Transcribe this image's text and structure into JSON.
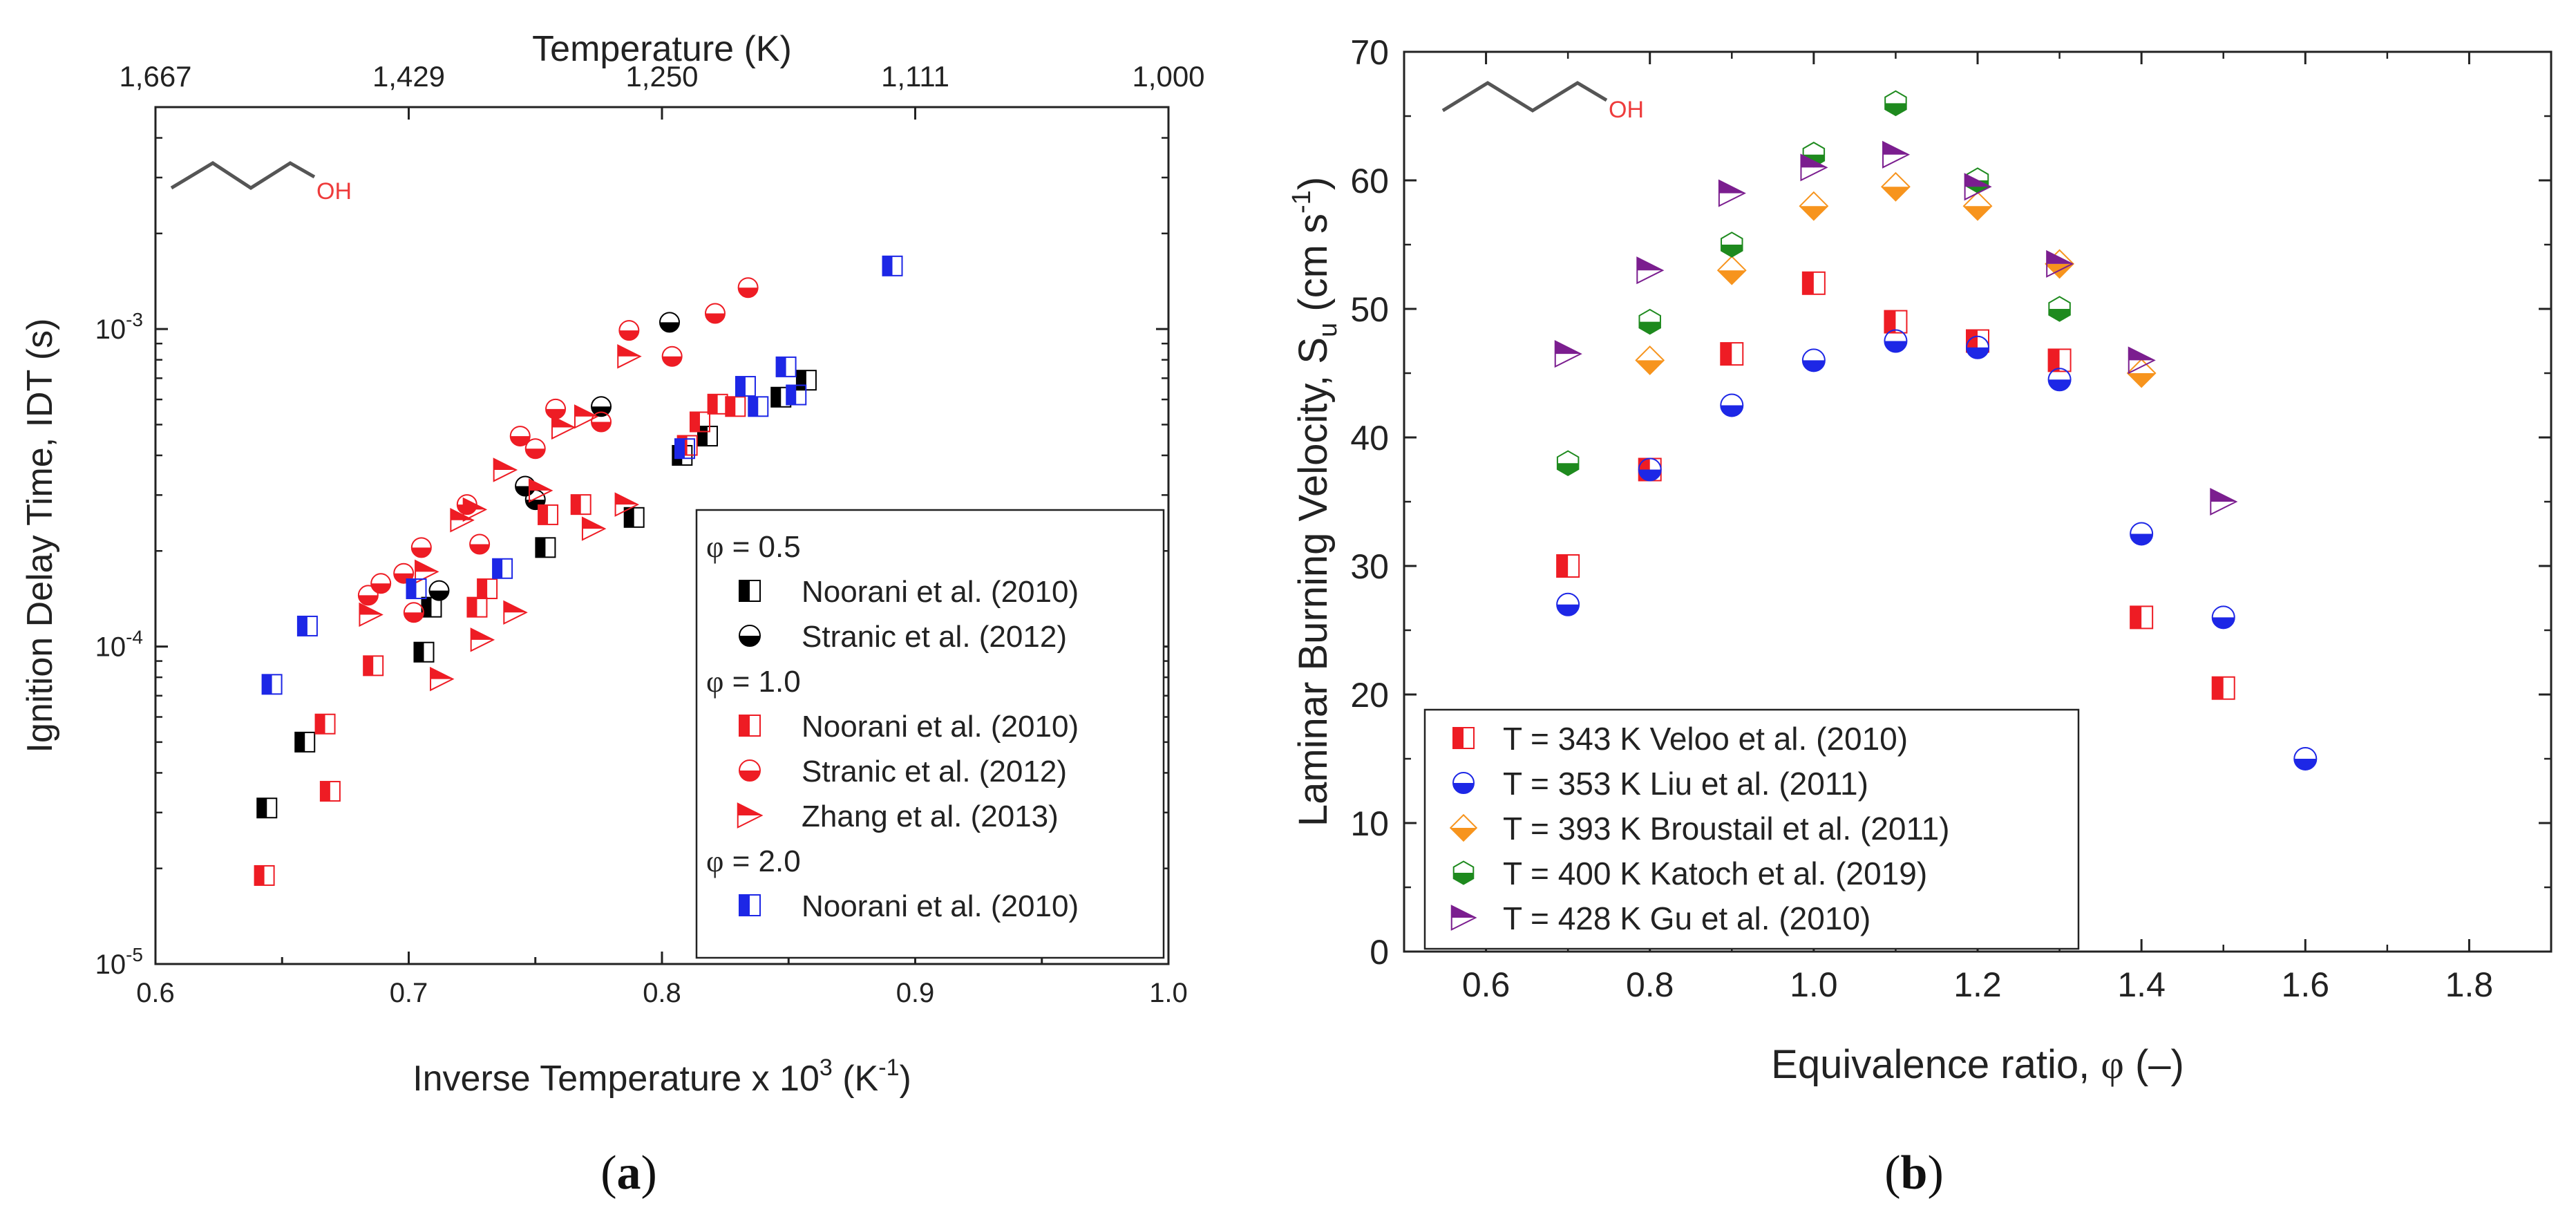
{
  "chart_data": [
    {
      "panel": "(a)",
      "panel_label_left": "(",
      "panel_label_letter": "a",
      "panel_label_right": ")",
      "type": "scatter",
      "xlabel": "Inverse Temperature x 10",
      "xlabel_sup": "3",
      "xlabel_unit_pre": " (K",
      "xlabel_unit_sup": "-1",
      "xlabel_unit_post": ")",
      "ylabel": "Ignition Delay Time, IDT (s)",
      "top_axis_label": "Temperature (K)",
      "top_ticks": [
        {
          "label": "1,667",
          "x": 0.6
        },
        {
          "label": "1,429",
          "x": 0.7
        },
        {
          "label": "1,250",
          "x": 0.8
        },
        {
          "label": "1,111",
          "x": 0.9
        },
        {
          "label": "1,000",
          "x": 1.0
        }
      ],
      "xlim": [
        0.6,
        1.0
      ],
      "ylim": [
        1e-05,
        0.005
      ],
      "yscale": "log",
      "x_ticks": [
        0.6,
        0.7,
        0.8,
        0.9,
        1.0
      ],
      "x_tick_labels": [
        "0.6",
        "0.7",
        "0.8",
        "0.9",
        "1.0"
      ],
      "y_ticks": [
        {
          "value": 1e-05,
          "base": "10",
          "exp": "-5"
        },
        {
          "value": 0.0001,
          "base": "10",
          "exp": "-4"
        },
        {
          "value": 0.001,
          "base": "10",
          "exp": "-3"
        }
      ],
      "molecule_label": "OH",
      "legend_position": "bottom-right",
      "legend_groups": [
        {
          "header_sym": "φ",
          "header_val": " = 0.5",
          "series": [
            0,
            1
          ]
        },
        {
          "header_sym": "φ",
          "header_val": " = 1.0",
          "series": [
            2,
            3,
            4
          ]
        },
        {
          "header_sym": "φ",
          "header_val": " = 2.0",
          "series": [
            5
          ]
        }
      ],
      "series": [
        {
          "name": "Noorani et al. (2010)",
          "phi": "0.5",
          "marker": "half-square",
          "color": "#000000",
          "points": [
            [
              0.644,
              3.1e-05
            ],
            [
              0.659,
              5e-05
            ],
            [
              0.706,
              9.6e-05
            ],
            [
              0.709,
              0.000133
            ],
            [
              0.754,
              0.000205
            ],
            [
              0.789,
              0.000255
            ],
            [
              0.808,
              0.0004
            ],
            [
              0.818,
              0.00046
            ],
            [
              0.847,
              0.00061
            ],
            [
              0.857,
              0.00069
            ]
          ]
        },
        {
          "name": "Stranic et al. (2012)",
          "phi": "0.5",
          "marker": "half-circle",
          "color": "#000000",
          "points": [
            [
              0.712,
              0.00015
            ],
            [
              0.746,
              0.00032
            ],
            [
              0.75,
              0.00029
            ],
            [
              0.776,
              0.00057
            ],
            [
              0.803,
              0.00105
            ]
          ]
        },
        {
          "name": "Noorani et al. (2010)",
          "phi": "1.0",
          "marker": "half-square",
          "color": "#ee1c24",
          "points": [
            [
              0.643,
              1.9e-05
            ],
            [
              0.667,
              5.7e-05
            ],
            [
              0.669,
              3.5e-05
            ],
            [
              0.686,
              8.7e-05
            ],
            [
              0.727,
              0.000133
            ],
            [
              0.731,
              0.000152
            ],
            [
              0.755,
              0.00026
            ],
            [
              0.768,
              0.00028
            ],
            [
              0.81,
              0.00043
            ],
            [
              0.815,
              0.00051
            ],
            [
              0.822,
              0.00058
            ],
            [
              0.829,
              0.00057
            ]
          ]
        },
        {
          "name": "Stranic et al. (2012)",
          "phi": "1.0",
          "marker": "half-circle",
          "color": "#ee1c24",
          "points": [
            [
              0.684,
              0.000145
            ],
            [
              0.689,
              0.000158
            ],
            [
              0.698,
              0.00017
            ],
            [
              0.702,
              0.000128
            ],
            [
              0.705,
              0.000205
            ],
            [
              0.723,
              0.00028
            ],
            [
              0.728,
              0.00021
            ],
            [
              0.744,
              0.00046
            ],
            [
              0.75,
              0.00042
            ],
            [
              0.758,
              0.00056
            ],
            [
              0.776,
              0.00051
            ],
            [
              0.787,
              0.00099
            ],
            [
              0.804,
              0.00082
            ],
            [
              0.821,
              0.00112
            ],
            [
              0.834,
              0.00135
            ]
          ]
        },
        {
          "name": "Zhang et al. (2013)",
          "phi": "1.0",
          "marker": "triangle-right",
          "color": "#ee1c24",
          "points": [
            [
              0.685,
              0.000126
            ],
            [
              0.707,
              0.000172
            ],
            [
              0.713,
              7.9e-05
            ],
            [
              0.721,
              0.00025
            ],
            [
              0.726,
              0.00027
            ],
            [
              0.729,
              0.000105
            ],
            [
              0.738,
              0.00036
            ],
            [
              0.742,
              0.000128
            ],
            [
              0.752,
              0.00031
            ],
            [
              0.761,
              0.00049
            ],
            [
              0.77,
              0.00053
            ],
            [
              0.773,
              0.000235
            ],
            [
              0.786,
              0.00028
            ],
            [
              0.787,
              0.00082
            ]
          ]
        },
        {
          "name": "Noorani et al. (2010)",
          "phi": "2.0",
          "marker": "half-square",
          "color": "#1d27e6",
          "points": [
            [
              0.646,
              7.6e-05
            ],
            [
              0.66,
              0.000116
            ],
            [
              0.703,
              0.000152
            ],
            [
              0.737,
              0.000176
            ],
            [
              0.809,
              0.00042
            ],
            [
              0.833,
              0.00066
            ],
            [
              0.838,
              0.00057
            ],
            [
              0.849,
              0.00076
            ],
            [
              0.853,
              0.00062
            ],
            [
              0.891,
              0.00158
            ]
          ]
        }
      ]
    },
    {
      "panel": "(b)",
      "panel_label_left": "(",
      "panel_label_letter": "b",
      "panel_label_right": ")",
      "type": "scatter",
      "xlabel_text": "Equivalence ratio, ",
      "xlabel_sym": "φ",
      "xlabel_unit": " (–)",
      "ylabel_main": "Laminar Burning Velocity, S",
      "ylabel_sub": "u",
      "ylabel_unit_pre": " (cm s",
      "ylabel_unit_sup": "-1",
      "ylabel_unit_post": ")",
      "xlim": [
        0.5,
        1.9
      ],
      "ylim": [
        0,
        70
      ],
      "x_ticks": [
        0.6,
        0.8,
        1.0,
        1.2,
        1.4,
        1.6,
        1.8
      ],
      "x_tick_labels": [
        "0.6",
        "0.8",
        "1.0",
        "1.2",
        "1.4",
        "1.6",
        "1.8"
      ],
      "y_ticks": [
        0,
        10,
        20,
        30,
        40,
        50,
        60,
        70
      ],
      "y_tick_labels": [
        "0",
        "10",
        "20",
        "30",
        "40",
        "50",
        "60",
        "70"
      ],
      "molecule_label": "OH",
      "legend_position": "bottom-left",
      "series": [
        {
          "name": "T = 343 K Veloo et al. (2010)",
          "marker": "half-square",
          "color": "#ee1c24",
          "x": [
            0.7,
            0.8,
            0.9,
            1.0,
            1.1,
            1.2,
            1.3,
            1.4,
            1.5
          ],
          "y": [
            30,
            37.5,
            46.5,
            52,
            49,
            47.5,
            46,
            26,
            20.5
          ]
        },
        {
          "name": "T = 353 K Liu et al. (2011)",
          "marker": "half-circle",
          "color": "#1d27e6",
          "x": [
            0.7,
            0.8,
            0.9,
            1.0,
            1.1,
            1.2,
            1.3,
            1.4,
            1.5,
            1.6
          ],
          "y": [
            27,
            37.5,
            42.5,
            46,
            47.5,
            47,
            44.5,
            32.5,
            26,
            15
          ]
        },
        {
          "name": "T = 393 K Broustail et al. (2011)",
          "marker": "half-diamond",
          "color": "#f7941d",
          "x": [
            0.8,
            0.9,
            1.0,
            1.1,
            1.2,
            1.3,
            1.4
          ],
          "y": [
            46,
            53,
            58,
            59.5,
            58,
            53.5,
            45
          ]
        },
        {
          "name": "T = 400 K Katoch et al. (2019)",
          "marker": "half-hexagon",
          "color": "#1e8a1e",
          "x": [
            0.7,
            0.8,
            0.9,
            1.0,
            1.1,
            1.2,
            1.3
          ],
          "y": [
            38,
            49,
            55,
            62,
            66,
            60,
            50
          ]
        },
        {
          "name": "T = 428 K Gu et al. (2010)",
          "marker": "triangle-right",
          "color": "#7b1e8f",
          "x": [
            0.7,
            0.8,
            0.9,
            1.0,
            1.1,
            1.2,
            1.3,
            1.4,
            1.5
          ],
          "y": [
            46.5,
            53,
            59,
            61,
            62,
            59.5,
            53.5,
            46,
            35
          ]
        }
      ]
    }
  ]
}
